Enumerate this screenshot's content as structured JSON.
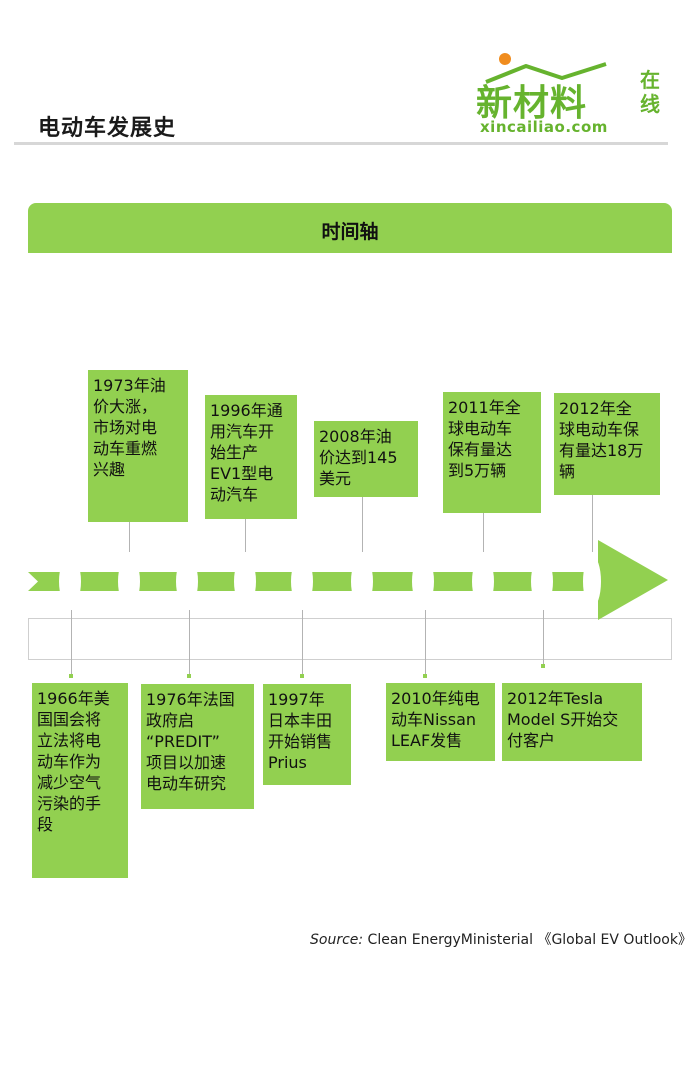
{
  "header": {
    "title": "电动车发展史"
  },
  "logo": {
    "main": "新材料",
    "side": "在线",
    "url": "xincailiao.com",
    "colors": {
      "green": "#66b32e",
      "dot": "#f08c1e"
    }
  },
  "band": {
    "label": "时间轴",
    "color": "#92d050"
  },
  "events_top": [
    {
      "text": "1973年油\n价大涨，\n市场对电\n动车重燃\n兴趣"
    },
    {
      "text": "1996年通\n用汽车开\n始生产\nEV1型电\n动汽车"
    },
    {
      "text": "2008年油\n价达到145\n美元"
    },
    {
      "text": "2011年全\n球电动车\n保有量达\n到5万辆"
    },
    {
      "text": "2012年全\n球电动车保\n有量达18万\n辆"
    }
  ],
  "events_bottom": [
    {
      "text": "1966年美\n国国会将\n立法将电\n动车作为\n减少空气\n污染的手\n段"
    },
    {
      "text": "1976年法国\n政府启\n“PREDIT”\n项目以加速\n电动车研究"
    },
    {
      "text": "1997年\n日本丰田\n开始销售\nPrius"
    },
    {
      "text": "2010年纯电\n动车Nissan\nLEAF发售"
    },
    {
      "text": "2012年Tesla\nModel S开始交\n付客户"
    }
  ],
  "source": {
    "label": "Source:",
    "text": " Clean EnergyMinisterial 《Global  EV Outlook》"
  }
}
